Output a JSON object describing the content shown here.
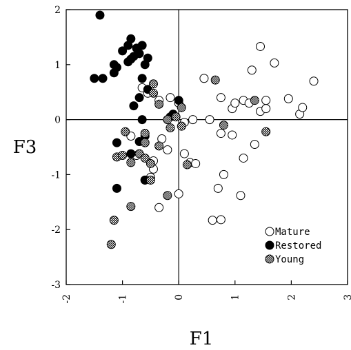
{
  "chart_data": {
    "type": "scatter",
    "title": "",
    "xlabel": "F1",
    "ylabel": "F3",
    "xlim": [
      -2,
      3
    ],
    "ylim": [
      -3,
      2
    ],
    "x_ticks": [
      "-2",
      "-1",
      "0",
      "1",
      "2",
      "3"
    ],
    "y_ticks": [
      "2",
      "1",
      "0",
      "-1",
      "-2",
      "-3"
    ],
    "grid": false,
    "zero_lines": true,
    "legend_position": "bottom-right",
    "series": [
      {
        "name": "Mature",
        "marker": "open-circle",
        "color": "#000000",
        "points": [
          [
            -0.65,
            0.58
          ],
          [
            -0.55,
            0.48
          ],
          [
            -0.35,
            0.35
          ],
          [
            -0.15,
            0.4
          ],
          [
            0.0,
            0.3
          ],
          [
            0.1,
            -0.05
          ],
          [
            0.25,
            0.0
          ],
          [
            0.45,
            0.75
          ],
          [
            0.55,
            0.0
          ],
          [
            0.75,
            0.4
          ],
          [
            0.95,
            0.2
          ],
          [
            1.0,
            0.3
          ],
          [
            1.15,
            0.35
          ],
          [
            1.25,
            0.3
          ],
          [
            1.3,
            0.9
          ],
          [
            1.45,
            1.33
          ],
          [
            1.45,
            0.15
          ],
          [
            1.55,
            0.2
          ],
          [
            1.55,
            0.35
          ],
          [
            1.7,
            1.03
          ],
          [
            1.95,
            0.38
          ],
          [
            2.15,
            0.1
          ],
          [
            2.2,
            0.22
          ],
          [
            2.4,
            0.7
          ],
          [
            -0.3,
            -0.35
          ],
          [
            -0.45,
            -0.75
          ],
          [
            -0.5,
            -1.05
          ],
          [
            -0.6,
            -1.1
          ],
          [
            -0.2,
            -0.55
          ],
          [
            -0.35,
            -1.6
          ],
          [
            0.0,
            -1.35
          ],
          [
            0.1,
            -0.62
          ],
          [
            0.2,
            -0.78
          ],
          [
            0.75,
            -0.25
          ],
          [
            0.7,
            -1.25
          ],
          [
            0.8,
            -1.0
          ],
          [
            0.95,
            -0.28
          ],
          [
            1.15,
            -0.7
          ],
          [
            1.35,
            -0.45
          ],
          [
            0.6,
            -1.83
          ],
          [
            0.75,
            -1.82
          ],
          [
            1.1,
            -1.38
          ],
          [
            -0.75,
            -0.65
          ],
          [
            -0.85,
            -0.3
          ],
          [
            -0.45,
            -0.9
          ],
          [
            0.3,
            -0.8
          ]
        ]
      },
      {
        "name": "Restored",
        "marker": "filled-circle",
        "color": "#000000",
        "points": [
          [
            -1.4,
            1.9
          ],
          [
            -1.5,
            0.75
          ],
          [
            -1.35,
            0.75
          ],
          [
            -1.15,
            0.85
          ],
          [
            -1.15,
            1.0
          ],
          [
            -1.1,
            0.95
          ],
          [
            -1.0,
            1.25
          ],
          [
            -0.9,
            1.05
          ],
          [
            -0.9,
            1.35
          ],
          [
            -0.85,
            1.47
          ],
          [
            -0.85,
            1.1
          ],
          [
            -0.8,
            1.15
          ],
          [
            -0.75,
            1.3
          ],
          [
            -0.7,
            1.2
          ],
          [
            -0.65,
            1.35
          ],
          [
            -0.6,
            1.0
          ],
          [
            -0.55,
            1.12
          ],
          [
            -0.65,
            0.75
          ],
          [
            -0.55,
            0.55
          ],
          [
            -0.8,
            0.25
          ],
          [
            -0.7,
            0.4
          ],
          [
            -0.65,
            0.0
          ],
          [
            -1.1,
            -0.42
          ],
          [
            -0.85,
            -0.62
          ],
          [
            -0.7,
            -0.4
          ],
          [
            -0.6,
            -0.3
          ],
          [
            -0.6,
            -1.1
          ],
          [
            -1.1,
            -1.25
          ],
          [
            -0.1,
            0.1
          ],
          [
            0.0,
            0.35
          ],
          [
            -0.15,
            0.05
          ]
        ]
      },
      {
        "name": "Young",
        "marker": "hatched-circle",
        "color": "#808080",
        "points": [
          [
            -1.2,
            -2.27
          ],
          [
            -1.15,
            -1.83
          ],
          [
            -0.85,
            -1.58
          ],
          [
            -1.1,
            -0.68
          ],
          [
            -1.0,
            -0.65
          ],
          [
            -0.95,
            -0.22
          ],
          [
            -0.85,
            -0.78
          ],
          [
            -0.7,
            -0.62
          ],
          [
            -0.6,
            -0.25
          ],
          [
            -0.6,
            -0.7
          ],
          [
            -0.5,
            -0.8
          ],
          [
            -0.5,
            -1.1
          ],
          [
            -0.45,
            0.65
          ],
          [
            -0.45,
            0.48
          ],
          [
            -0.35,
            0.28
          ],
          [
            -0.2,
            0.0
          ],
          [
            -0.15,
            -0.15
          ],
          [
            -0.05,
            0.05
          ],
          [
            0.05,
            0.22
          ],
          [
            0.05,
            -0.12
          ],
          [
            -0.2,
            -1.38
          ],
          [
            0.15,
            -0.82
          ],
          [
            0.65,
            0.72
          ],
          [
            0.8,
            -0.1
          ],
          [
            1.35,
            0.35
          ],
          [
            1.55,
            -0.22
          ],
          [
            -0.35,
            -0.48
          ],
          [
            -0.6,
            -0.42
          ]
        ]
      }
    ]
  }
}
